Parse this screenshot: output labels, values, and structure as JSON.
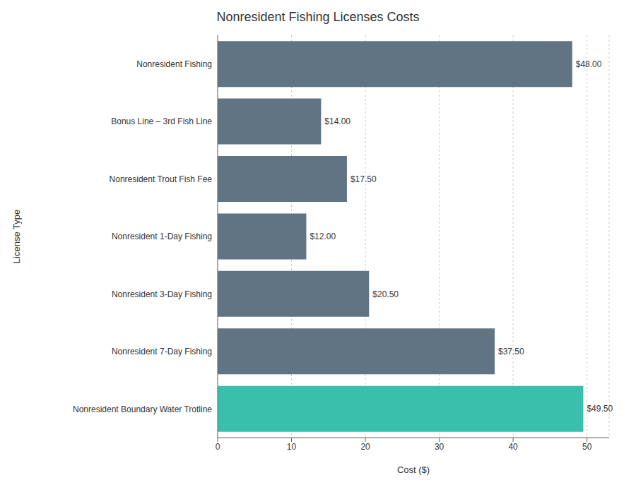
{
  "chart_data": {
    "type": "bar",
    "orientation": "horizontal",
    "title": "Nonresident Fishing Licenses Costs",
    "xlabel": "Cost ($)",
    "ylabel": "License Type",
    "categories": [
      "Nonresident Fishing",
      "Bonus Line – 3rd Fish Line",
      "Nonresident Trout Fish Fee",
      "Nonresident 1-Day Fishing",
      "Nonresident 3-Day Fishing",
      "Nonresident 7-Day Fishing",
      "Nonresident Boundary Water Trotline"
    ],
    "values": [
      48.0,
      14.0,
      17.5,
      12.0,
      20.5,
      37.5,
      49.5
    ],
    "value_labels": [
      "$48.00",
      "$14.00",
      "$17.50",
      "$12.00",
      "$20.50",
      "$37.50",
      "$49.50"
    ],
    "data_labels": true,
    "colors": [
      "#607484",
      "#607484",
      "#607484",
      "#607484",
      "#607484",
      "#607484",
      "#3bbfad"
    ],
    "xlim": [
      0,
      53
    ],
    "xticks": [
      0,
      10,
      20,
      30,
      40,
      50
    ],
    "grid": true
  }
}
